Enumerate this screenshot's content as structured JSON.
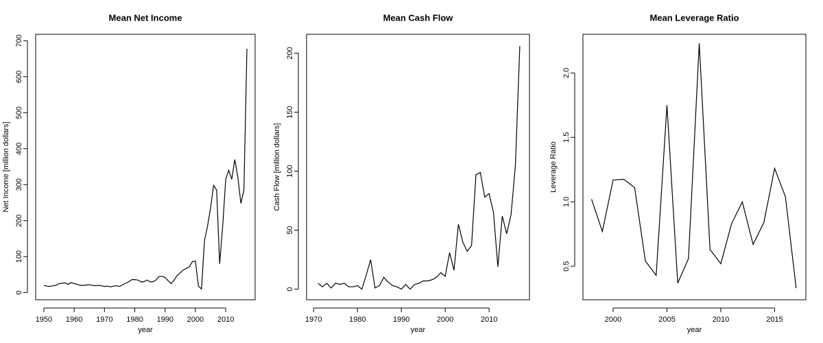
{
  "chart_data": [
    {
      "type": "line",
      "title": "Mean Net Income",
      "xlabel": "year",
      "ylabel": "Net Income [million dollars]",
      "x": [
        1950,
        1951,
        1952,
        1953,
        1954,
        1955,
        1956,
        1957,
        1958,
        1959,
        1960,
        1961,
        1962,
        1963,
        1964,
        1965,
        1966,
        1967,
        1968,
        1969,
        1970,
        1971,
        1972,
        1973,
        1974,
        1975,
        1976,
        1977,
        1978,
        1979,
        1980,
        1981,
        1982,
        1983,
        1984,
        1985,
        1986,
        1987,
        1988,
        1989,
        1990,
        1991,
        1992,
        1993,
        1994,
        1995,
        1996,
        1997,
        1998,
        1999,
        2000,
        2001,
        2002,
        2003,
        2004,
        2005,
        2006,
        2007,
        2008,
        2009,
        2010,
        2011,
        2012,
        2013,
        2014,
        2015,
        2016,
        2017
      ],
      "series": [
        {
          "color": "#000000",
          "values": [
            20,
            18,
            17,
            19,
            20,
            25,
            26,
            27,
            23,
            28,
            25,
            23,
            20,
            20,
            21,
            22,
            20,
            19,
            20,
            19,
            17,
            18,
            16,
            18,
            19,
            17,
            22,
            26,
            30,
            36,
            36,
            35,
            30,
            30,
            35,
            30,
            30,
            35,
            45,
            45,
            42,
            33,
            25,
            35,
            48,
            55,
            63,
            67,
            72,
            86,
            88,
            18,
            10,
            145,
            185,
            235,
            298,
            285,
            80,
            185,
            315,
            340,
            315,
            370,
            320,
            248,
            285,
            678
          ]
        }
      ],
      "xlim": [
        1947.3,
        2019.7
      ],
      "xticks": [
        1950,
        1960,
        1970,
        1980,
        1990,
        2000,
        2010
      ],
      "ylim": [
        -20,
        718
      ],
      "yticks": [
        0,
        100,
        200,
        300,
        400,
        500,
        600,
        700
      ]
    },
    {
      "type": "line",
      "title": "Mean Cash Flow",
      "xlabel": "year",
      "ylabel": "Cash Flow [million dollars]",
      "x": [
        1971,
        1972,
        1973,
        1974,
        1975,
        1976,
        1977,
        1978,
        1979,
        1980,
        1981,
        1982,
        1983,
        1984,
        1985,
        1986,
        1987,
        1988,
        1989,
        1990,
        1991,
        1992,
        1993,
        1994,
        1995,
        1996,
        1997,
        1998,
        1999,
        2000,
        2001,
        2002,
        2003,
        2004,
        2005,
        2006,
        2007,
        2008,
        2009,
        2010,
        2011,
        2012,
        2013,
        2014,
        2015,
        2016,
        2017
      ],
      "series": [
        {
          "color": "#000000",
          "values": [
            5,
            2,
            5,
            1,
            5,
            4,
            5,
            2,
            2,
            3,
            0,
            12,
            25,
            1,
            3,
            10,
            6,
            3,
            2,
            0,
            4,
            0,
            4,
            5,
            7,
            7,
            8,
            10,
            14,
            11,
            31,
            16,
            55,
            40,
            32,
            37,
            97,
            99,
            78,
            81,
            65,
            19,
            62,
            47,
            63,
            105,
            206
          ]
        }
      ],
      "xlim": [
        1968.4,
        2019.2
      ],
      "xticks": [
        1970,
        1980,
        1990,
        2000,
        2010
      ],
      "ylim": [
        -9,
        216
      ],
      "yticks": [
        0,
        50,
        100,
        150,
        200
      ]
    },
    {
      "type": "line",
      "title": "Mean Leverage Ratio",
      "xlabel": "year",
      "ylabel": "Leverage Ratio",
      "x": [
        1998,
        1999,
        2000,
        2001,
        2002,
        2003,
        2004,
        2005,
        2006,
        2007,
        2008,
        2009,
        2010,
        2011,
        2012,
        2013,
        2014,
        2015,
        2016,
        2017
      ],
      "series": [
        {
          "color": "#000000",
          "values": [
            1.02,
            0.77,
            1.17,
            1.175,
            1.11,
            0.54,
            0.43,
            1.75,
            0.37,
            0.56,
            2.23,
            0.63,
            0.52,
            0.83,
            1.0,
            0.67,
            0.84,
            1.26,
            1.04,
            0.33
          ]
        }
      ],
      "xlim": [
        1997.2,
        2017.9
      ],
      "xticks": [
        2000,
        2005,
        2010,
        2015
      ],
      "ylim": [
        0.24,
        2.3
      ],
      "yticks": [
        0.5,
        {
          "value": 1.0,
          "label": "1.0"
        },
        1.5,
        {
          "value": 2.0,
          "label": "2.0"
        }
      ]
    }
  ]
}
